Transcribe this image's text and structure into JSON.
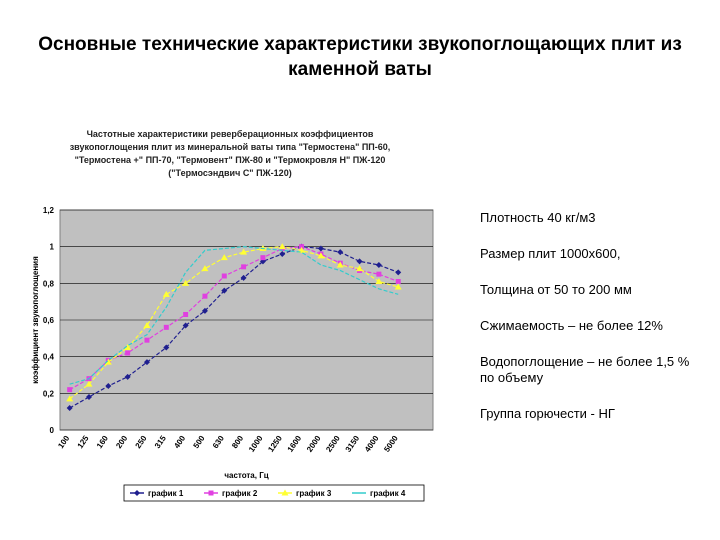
{
  "slide": {
    "title": "Основные технические характеристики звукопоглощающих плит из каменной ваты"
  },
  "chart_data": {
    "type": "line",
    "title": "Частотные характеристики реверберационных коэффициентов звукопоглощения плит из минеральной ваты типа \"Термостена\" ПП-60, \"Термостена +\" ПП-70, \"Термовент\" ПЖ-80 и \"Термокровля Н\" ПЖ-120 (\"Термосэндвич С\" ПЖ-120)",
    "xlabel": "частота, Гц",
    "ylabel": "коэффициент звукопоглощения",
    "categories": [
      "100",
      "125",
      "160",
      "200",
      "250",
      "315",
      "400",
      "500",
      "630",
      "800",
      "1000",
      "1250",
      "1600",
      "2000",
      "2500",
      "3150",
      "4000",
      "5000"
    ],
    "yticks": [
      "0",
      "0,2",
      "0,4",
      "0,6",
      "0,8",
      "1",
      "1,2"
    ],
    "ylim": [
      0,
      1.2
    ],
    "grid": true,
    "legend_position": "bottom",
    "series": [
      {
        "name": "график 1",
        "color": "#1f1f8f",
        "marker": "diamond",
        "values": [
          0.12,
          0.18,
          0.24,
          0.29,
          0.37,
          0.45,
          0.57,
          0.65,
          0.76,
          0.83,
          0.92,
          0.96,
          1.0,
          0.99,
          0.97,
          0.92,
          0.9,
          0.86
        ]
      },
      {
        "name": "график 2",
        "color": "#e040e0",
        "marker": "square",
        "values": [
          0.22,
          0.28,
          0.38,
          0.42,
          0.49,
          0.56,
          0.63,
          0.73,
          0.84,
          0.89,
          0.94,
          0.99,
          1.0,
          0.96,
          0.91,
          0.87,
          0.85,
          0.81
        ]
      },
      {
        "name": "график 3",
        "color": "#ffff33",
        "marker": "triangle",
        "values": [
          0.17,
          0.25,
          0.37,
          0.45,
          0.57,
          0.74,
          0.8,
          0.88,
          0.94,
          0.97,
          0.99,
          1.0,
          0.98,
          0.95,
          0.9,
          0.88,
          0.81,
          0.78
        ]
      },
      {
        "name": "график 4",
        "color": "#33cccc",
        "marker": "none",
        "values": [
          0.25,
          0.28,
          0.38,
          0.46,
          0.52,
          0.67,
          0.86,
          0.98,
          0.99,
          1.0,
          0.99,
          0.98,
          0.97,
          0.9,
          0.87,
          0.82,
          0.77,
          0.74
        ]
      }
    ]
  },
  "properties": [
    "Плотность 40 кг/м3",
    "Размер плит 1000х600,",
    "Толщина от 50 то 200 мм",
    "Сжимаемость – не более 12%",
    "Водопоглощение – не более 1,5 % по объему",
    "Группа горючести - НГ"
  ]
}
